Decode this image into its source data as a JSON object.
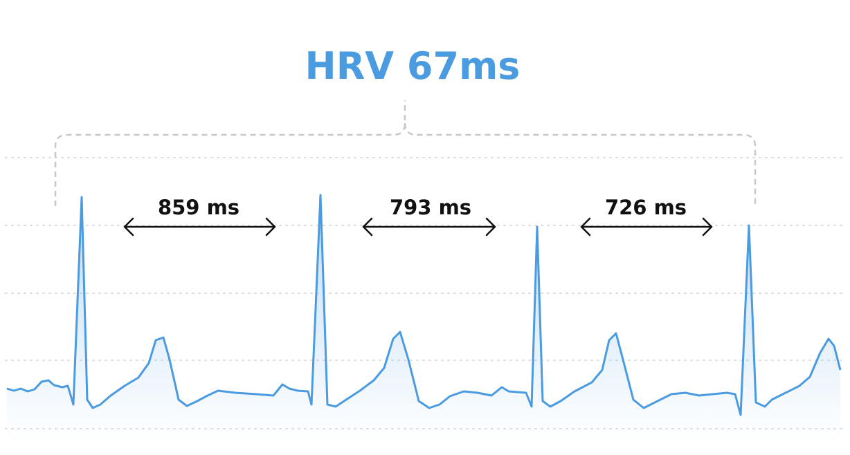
{
  "title": "HRV 67ms",
  "intervals": [
    "859 ms",
    "793 ms",
    "726 ms"
  ]
}
